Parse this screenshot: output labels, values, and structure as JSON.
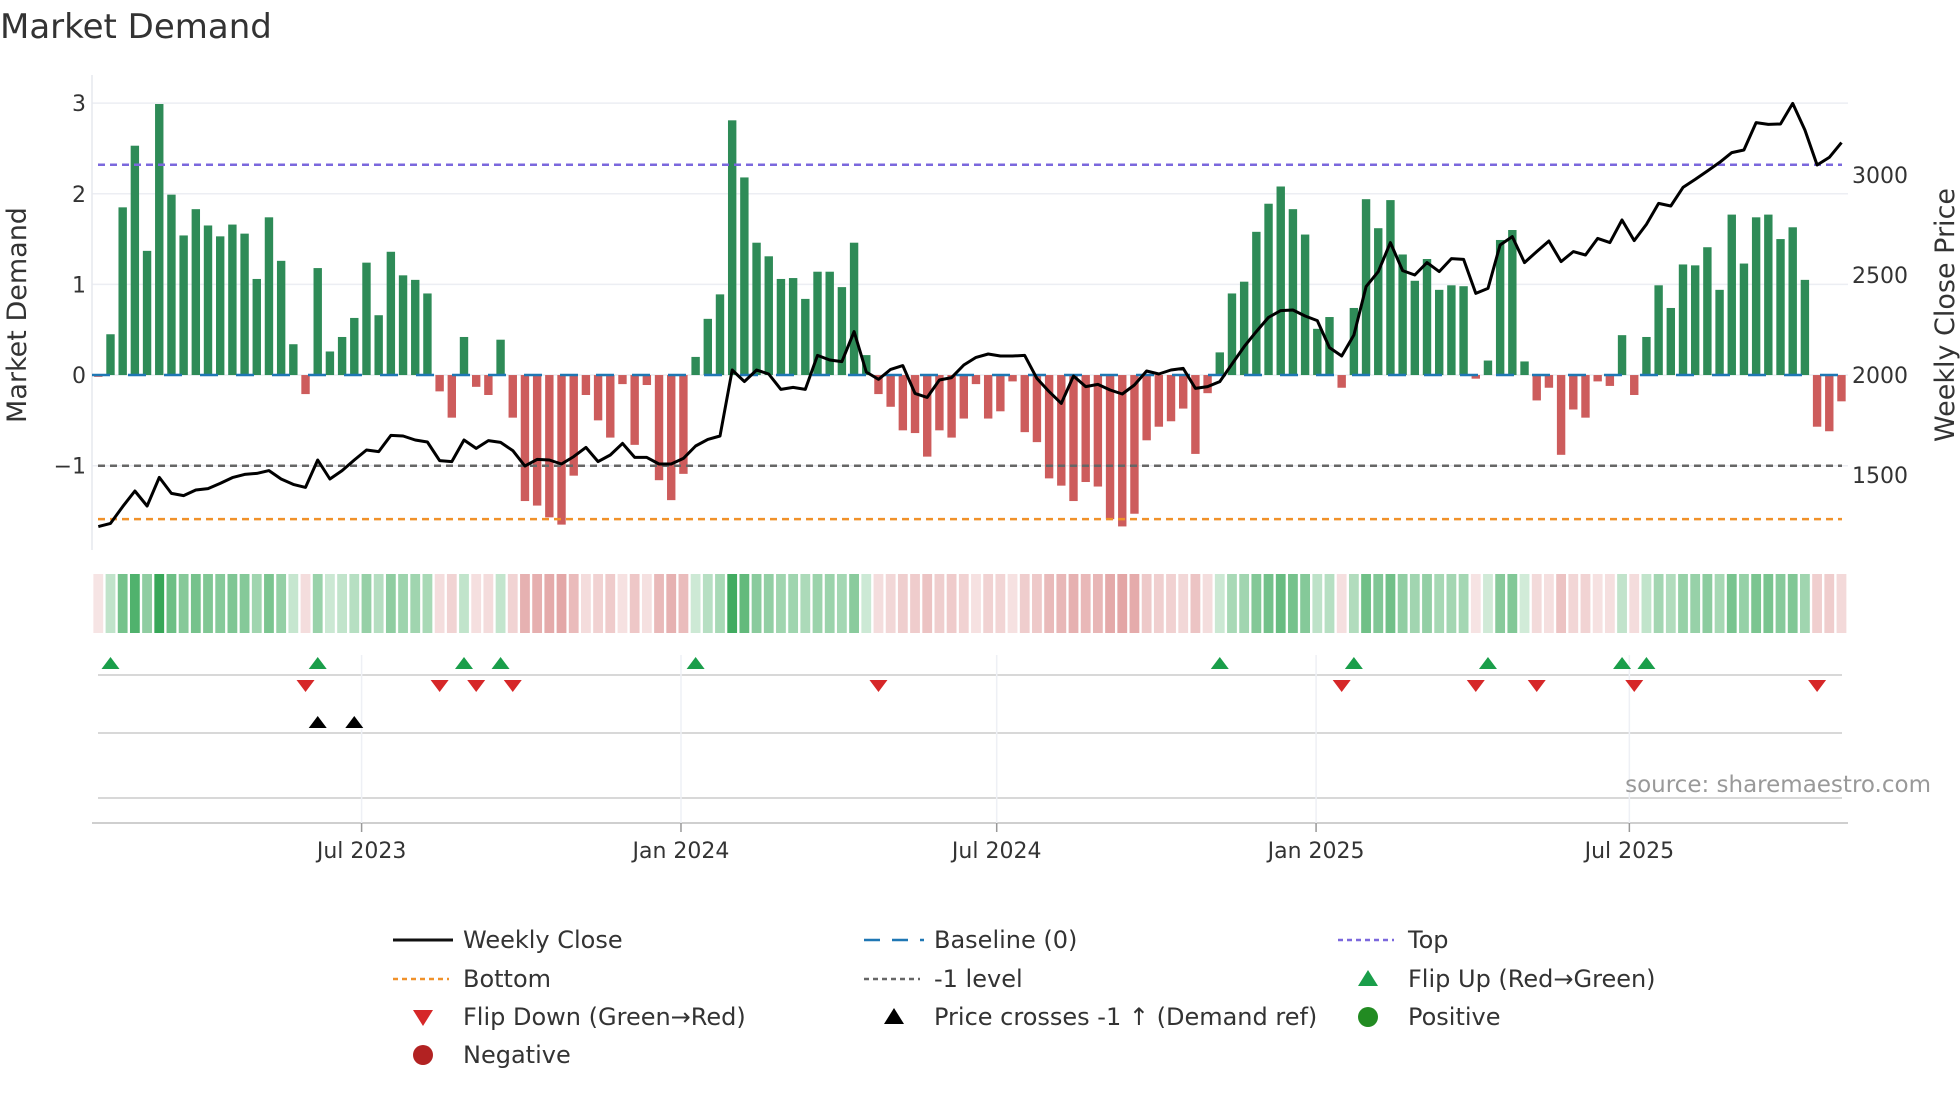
{
  "chart_data": {
    "type": "bar",
    "title": "Market Demand",
    "ylabel": "Market Demand",
    "y2label": "Weekly Close Price",
    "ylim": [
      -1.93,
      3.31
    ],
    "y2lim": [
      1125,
      3500
    ],
    "yticks": [
      {
        "v": 3,
        "label": "3"
      },
      {
        "v": 2,
        "label": "2"
      },
      {
        "v": 1,
        "label": "1"
      },
      {
        "v": 0,
        "label": "0"
      },
      {
        "v": -1,
        "label": "−1"
      }
    ],
    "y2ticks": [
      {
        "v": 3000,
        "label": "3000"
      },
      {
        "v": 2500,
        "label": "2500"
      },
      {
        "v": 2000,
        "label": "2000"
      },
      {
        "v": 1500,
        "label": "1500"
      }
    ],
    "x_ticks": [
      {
        "label": "Jul 2023",
        "at_index": 21.6
      },
      {
        "label": "Jan 2024",
        "at_index": 47.8
      },
      {
        "label": "Jul 2024",
        "at_index": 73.7
      },
      {
        "label": "Jan 2025",
        "at_index": 99.9
      },
      {
        "label": "Jul 2025",
        "at_index": 125.6
      }
    ],
    "levels": {
      "top": 2.32,
      "baseline": 0,
      "minus_one": -1,
      "bottom": -1.59
    },
    "demand": [
      -0.02,
      0.45,
      1.85,
      2.53,
      1.37,
      2.99,
      1.99,
      1.54,
      1.83,
      1.65,
      1.53,
      1.66,
      1.56,
      1.06,
      1.74,
      1.26,
      0.34,
      -0.21,
      1.18,
      0.26,
      0.42,
      0.63,
      1.24,
      0.66,
      1.36,
      1.1,
      1.05,
      0.9,
      -0.18,
      -0.47,
      0.42,
      -0.13,
      -0.22,
      0.39,
      -0.47,
      -1.39,
      -1.44,
      -1.57,
      -1.65,
      -1.11,
      -0.22,
      -0.5,
      -0.69,
      -0.1,
      -0.77,
      -0.11,
      -1.16,
      -1.38,
      -1.09,
      0.2,
      0.62,
      0.89,
      2.81,
      2.18,
      1.46,
      1.31,
      1.06,
      1.07,
      0.84,
      1.14,
      1.14,
      0.97,
      1.46,
      0.22,
      -0.21,
      -0.35,
      -0.61,
      -0.64,
      -0.9,
      -0.61,
      -0.69,
      -0.48,
      -0.1,
      -0.48,
      -0.4,
      -0.07,
      -0.63,
      -0.74,
      -1.14,
      -1.22,
      -1.39,
      -1.18,
      -1.23,
      -1.59,
      -1.67,
      -1.53,
      -0.72,
      -0.57,
      -0.51,
      -0.37,
      -0.87,
      -0.2,
      0.25,
      0.9,
      1.03,
      1.58,
      1.89,
      2.08,
      1.83,
      1.55,
      0.51,
      0.64,
      -0.14,
      0.74,
      1.94,
      1.62,
      1.93,
      1.33,
      1.04,
      1.28,
      0.94,
      0.99,
      0.98,
      -0.04,
      0.16,
      1.49,
      1.6,
      0.15,
      -0.28,
      -0.14,
      -0.88,
      -0.38,
      -0.47,
      -0.07,
      -0.12,
      0.44,
      -0.22,
      0.42,
      0.99,
      0.74,
      1.22,
      1.21,
      1.41,
      0.94,
      1.77,
      1.23,
      1.74,
      1.77,
      1.5,
      1.63,
      1.05,
      -0.57,
      -0.62,
      -0.29
    ],
    "weekly_close": [
      1242,
      1258,
      1342,
      1420,
      1345,
      1488,
      1408,
      1397,
      1425,
      1432,
      1458,
      1487,
      1503,
      1508,
      1522,
      1480,
      1453,
      1438,
      1575,
      1480,
      1522,
      1575,
      1625,
      1617,
      1698,
      1695,
      1675,
      1665,
      1572,
      1567,
      1675,
      1633,
      1672,
      1663,
      1622,
      1545,
      1578,
      1575,
      1555,
      1592,
      1638,
      1567,
      1600,
      1658,
      1588,
      1588,
      1555,
      1555,
      1583,
      1645,
      1678,
      1695,
      2025,
      1967,
      2025,
      2005,
      1928,
      1938,
      1928,
      2098,
      2075,
      2067,
      2217,
      2015,
      1978,
      2028,
      2047,
      1908,
      1888,
      1975,
      1987,
      2050,
      2088,
      2105,
      2095,
      2095,
      2098,
      1983,
      1917,
      1858,
      1995,
      1942,
      1953,
      1925,
      1905,
      1950,
      2020,
      2005,
      2025,
      2033,
      1933,
      1942,
      1967,
      2055,
      2142,
      2217,
      2288,
      2322,
      2325,
      2295,
      2272,
      2137,
      2095,
      2200,
      2442,
      2517,
      2662,
      2522,
      2500,
      2562,
      2517,
      2582,
      2578,
      2408,
      2433,
      2650,
      2692,
      2562,
      2617,
      2670,
      2567,
      2617,
      2600,
      2683,
      2662,
      2775,
      2672,
      2753,
      2858,
      2845,
      2938,
      2978,
      3020,
      3063,
      3112,
      3125,
      3262,
      3253,
      3255,
      3358,
      3225,
      3050,
      3088,
      3162
    ],
    "flip_up_indices": [
      1,
      18,
      30,
      33,
      49,
      92,
      103,
      114,
      125,
      127
    ],
    "flip_down_indices": [
      17,
      28,
      31,
      34,
      64,
      102,
      113,
      118,
      126,
      141
    ],
    "price_cross_indices": [
      18,
      21
    ],
    "legend": [
      {
        "label": "Weekly Close",
        "kind": "line"
      },
      {
        "label": "Baseline (0)",
        "kind": "baseline"
      },
      {
        "label": "Top",
        "kind": "top"
      },
      {
        "label": "Bottom",
        "kind": "bottom"
      },
      {
        "label": "-1 level",
        "kind": "minus1"
      },
      {
        "label": "Flip Up (Red→Green)",
        "kind": "flipup"
      },
      {
        "label": "Flip Down (Green→Red)",
        "kind": "flipdown"
      },
      {
        "label": "Price crosses -1 ↑ (Demand ref)",
        "kind": "cross"
      },
      {
        "label": "Positive",
        "kind": "pos"
      },
      {
        "label": "Negative",
        "kind": "neg"
      }
    ],
    "legend_placement": "bottom",
    "grid": true
  },
  "source": "source: sharemaestro.com",
  "colors": {
    "pos": "#2e8b57",
    "neg": "#cd5c5c",
    "top": "#7b68dd",
    "bottom": "#f0912a",
    "minus1": "#666666",
    "baseline": "#1f77b4",
    "flipup": "#1a9e4a",
    "flipdown": "#d62728",
    "positive_dot": "#228b22",
    "negative_dot": "#b22222"
  }
}
